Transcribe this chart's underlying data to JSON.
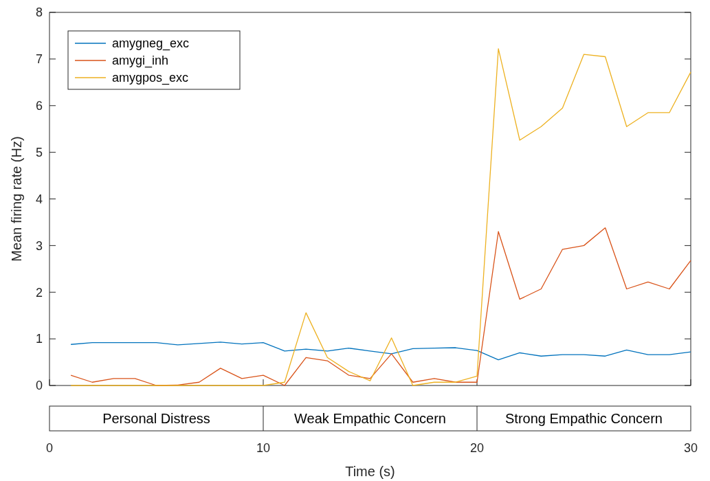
{
  "chart_data": {
    "type": "line",
    "xlabel": "Time (s)",
    "ylabel": "Mean firing rate (Hz)",
    "x": [
      1,
      2,
      3,
      4,
      5,
      6,
      7,
      8,
      9,
      10,
      11,
      12,
      13,
      14,
      15,
      16,
      17,
      18,
      19,
      20,
      21,
      22,
      23,
      24,
      25,
      26,
      27,
      28,
      29,
      30
    ],
    "series": [
      {
        "name": "amygneg_exc",
        "color": "#0072bd",
        "values": [
          0.88,
          0.92,
          0.92,
          0.92,
          0.92,
          0.87,
          0.9,
          0.93,
          0.89,
          0.92,
          0.74,
          0.78,
          0.74,
          0.8,
          0.74,
          0.68,
          0.79,
          0.8,
          0.81,
          0.75,
          0.55,
          0.7,
          0.63,
          0.66,
          0.66,
          0.63,
          0.76,
          0.66,
          0.66,
          0.72
        ]
      },
      {
        "name": "amygi_inh",
        "color": "#d95319",
        "values": [
          0.22,
          0.07,
          0.15,
          0.15,
          0,
          0.01,
          0.07,
          0.37,
          0.15,
          0.22,
          0,
          0.6,
          0.53,
          0.22,
          0.15,
          0.68,
          0.07,
          0.15,
          0.07,
          0.07,
          3.3,
          1.85,
          2.07,
          2.92,
          3.0,
          3.38,
          2.07,
          2.22,
          2.07,
          2.68
        ]
      },
      {
        "name": "amygpos_exc",
        "color": "#edb120",
        "values": [
          0,
          0,
          0,
          0,
          0,
          0,
          0,
          0,
          0,
          0,
          0.07,
          1.56,
          0.6,
          0.3,
          0.1,
          1.02,
          0,
          0.07,
          0.07,
          0.2,
          7.22,
          5.26,
          5.55,
          5.95,
          7.1,
          7.05,
          5.55,
          5.85,
          5.85,
          6.72
        ]
      }
    ],
    "xlim": [
      0,
      30
    ],
    "xticks": [
      0,
      10,
      20,
      30
    ],
    "ylim": [
      0,
      8
    ],
    "yticks": [
      0,
      1,
      2,
      3,
      4,
      5,
      6,
      7,
      8
    ],
    "annotations": [
      "Personal Distress",
      "Weak Empathic Concern",
      "Strong Empathic Concern"
    ],
    "legend": "top left",
    "grid": false
  }
}
